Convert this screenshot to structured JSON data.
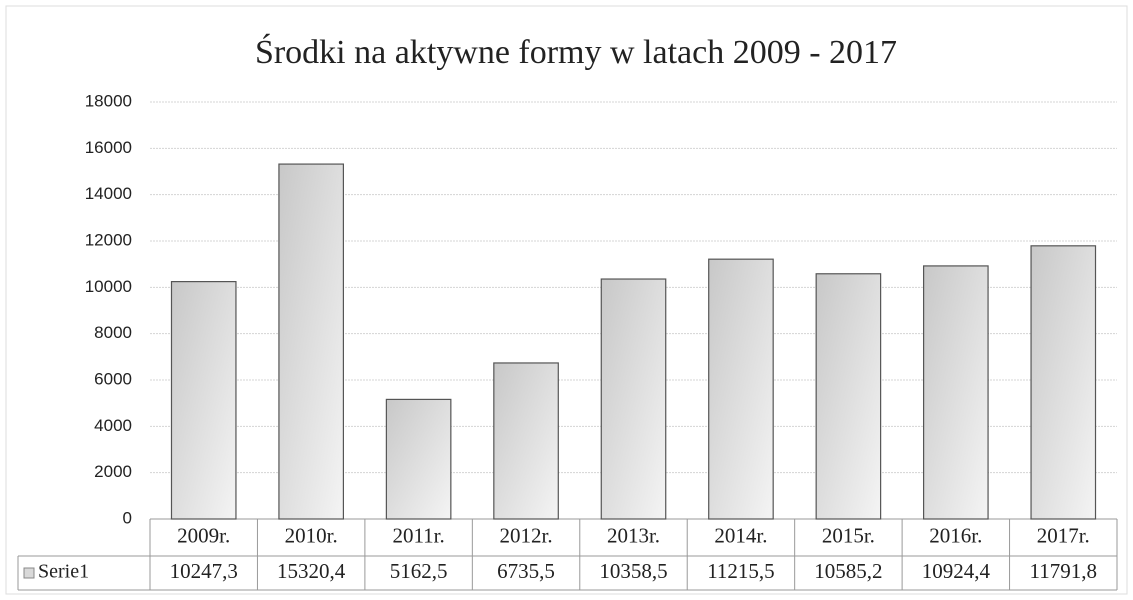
{
  "chart_data": {
    "type": "bar",
    "title": "Środki na aktywne formy w latach 2009 - 2017",
    "categories": [
      "2009r.",
      "2010r.",
      "2011r.",
      "2012r.",
      "2013r.",
      "2014r.",
      "2015r.",
      "2016r.",
      "2017r."
    ],
    "series": [
      {
        "name": "Serie1",
        "color": "#d9d9d9",
        "values": [
          10247.3,
          15320.4,
          5162.5,
          6735.5,
          10358.5,
          11215.5,
          10585.2,
          10924.4,
          11791.8
        ],
        "value_labels": [
          "10247,3",
          "15320,4",
          "5162,5",
          "6735,5",
          "10358,5",
          "11215,5",
          "10585,2",
          "10924,4",
          "11791,8"
        ]
      }
    ],
    "ylim": [
      0,
      18000
    ],
    "yticks": [
      0,
      2000,
      4000,
      6000,
      8000,
      10000,
      12000,
      14000,
      16000,
      18000
    ],
    "grid": true
  }
}
